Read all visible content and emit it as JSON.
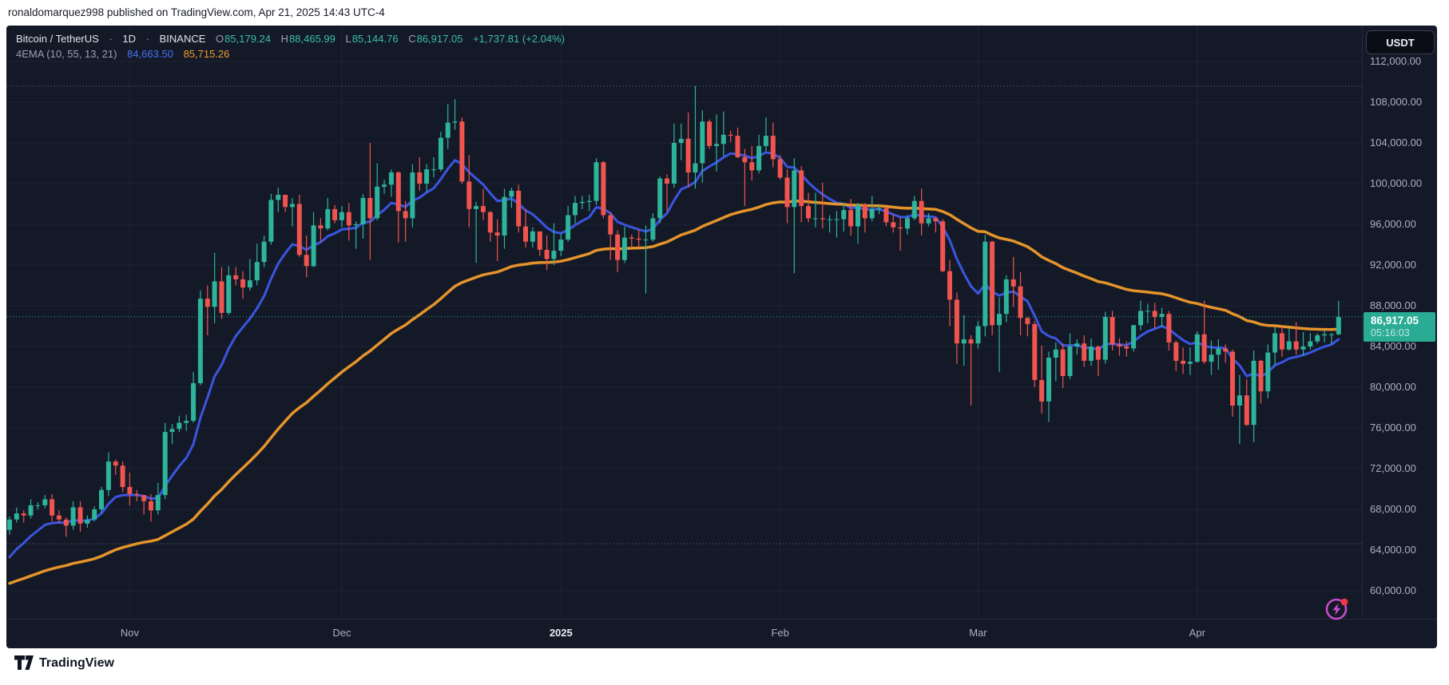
{
  "publish_bar": {
    "text": "ronaldomarquez998 published on TradingView.com, Apr 21, 2025 14:43 UTC-4"
  },
  "header": {
    "title": "Bitcoin / TetherUS",
    "dot": "·",
    "interval": "1D",
    "exchange": "BINANCE",
    "ohlc": [
      {
        "label": "O",
        "value": "85,179.24"
      },
      {
        "label": "H",
        "value": "88,465.99"
      },
      {
        "label": "L",
        "value": "85,144.76"
      },
      {
        "label": "C",
        "value": "86,917.05"
      }
    ],
    "change": "+1,737.81 (+2.04%)"
  },
  "indicator": {
    "name": "4EMA (10, 55, 13, 21)",
    "value_fast": "84,663.50",
    "value_slow": "85,715.26"
  },
  "price_label": {
    "price": "86,917.05",
    "countdown": "05:16:03"
  },
  "footer": {
    "logo_text": "TradingView"
  },
  "chart_data": {
    "type": "candlestick",
    "symbol": "BTCUSDT",
    "exchange": "BINANCE",
    "interval": "1D",
    "currency_button": "USDT",
    "units": "price values in thousands of USDT, one candle per day, Oct 15 2024 - Apr 21 2025",
    "last_bar": {
      "open": 85179.24,
      "high": 88465.99,
      "low": 85144.76,
      "close": 86917.05
    },
    "price_axis_ticks": [
      {
        "label": "112,000.00",
        "value": 112
      },
      {
        "label": "108,000.00",
        "value": 108
      },
      {
        "label": "104,000.00",
        "value": 104
      },
      {
        "label": "100,000.00",
        "value": 100
      },
      {
        "label": "96,000.00",
        "value": 96
      },
      {
        "label": "92,000.00",
        "value": 92
      },
      {
        "label": "88,000.00",
        "value": 88
      },
      {
        "label": "84,000.00",
        "value": 84
      },
      {
        "label": "80,000.00",
        "value": 80
      },
      {
        "label": "76,000.00",
        "value": 76
      },
      {
        "label": "72,000.00",
        "value": 72
      },
      {
        "label": "68,000.00",
        "value": 68
      },
      {
        "label": "64,000.00",
        "value": 64
      },
      {
        "label": "60,000.00",
        "value": 60
      }
    ],
    "time_axis_ticks": [
      {
        "label": "Nov",
        "index": 17,
        "bold": false
      },
      {
        "label": "Dec",
        "index": 47,
        "bold": false
      },
      {
        "label": "2025",
        "index": 78,
        "bold": true
      },
      {
        "label": "Feb",
        "index": 109,
        "bold": false
      },
      {
        "label": "Mar",
        "index": 137,
        "bold": false
      },
      {
        "label": "Apr",
        "index": 168,
        "bold": false
      }
    ],
    "price_line": {
      "value": 86.917,
      "label": "86,917.05",
      "countdown": "05:16:03"
    },
    "range_lines": {
      "high": 109.57,
      "low": 64.63
    },
    "emas": [
      {
        "name": "EMA fast (blue)",
        "period": 10,
        "seed": 62.5,
        "color": "#3a55e0",
        "width": 3
      },
      {
        "name": "EMA slow (orange)",
        "period": 55,
        "seed": 60.5,
        "color": "#e5942b",
        "width": 3.5
      }
    ],
    "colors": {
      "up": "#2db49a",
      "down": "#f0544f",
      "grid": "#1d2434",
      "axis_text": "#a9b0bf",
      "range_dotted": "#9aa3b5",
      "price_tag_bg": "#2aab93",
      "flash_icon": "#c54ccc",
      "alert_dot": "#f23645",
      "background": "#141927"
    },
    "candles_ohlc": [
      [
        66.0,
        67.3,
        65.5,
        67.0
      ],
      [
        67.0,
        68.2,
        66.7,
        67.6
      ],
      [
        67.6,
        67.9,
        66.7,
        67.4
      ],
      [
        67.4,
        69.0,
        67.1,
        68.4
      ],
      [
        68.4,
        68.7,
        68.0,
        68.4
      ],
      [
        68.4,
        69.4,
        68.1,
        69.0
      ],
      [
        69.0,
        69.5,
        66.8,
        67.4
      ],
      [
        67.4,
        67.9,
        66.6,
        67.0
      ],
      [
        67.0,
        67.2,
        65.3,
        66.4
      ],
      [
        66.4,
        68.8,
        66.0,
        68.2
      ],
      [
        68.2,
        68.8,
        65.8,
        66.6
      ],
      [
        66.6,
        67.4,
        66.2,
        67.0
      ],
      [
        67.0,
        68.3,
        66.8,
        68.0
      ],
      [
        68.0,
        70.2,
        67.6,
        69.9
      ],
      [
        69.9,
        73.6,
        69.3,
        72.7
      ],
      [
        72.7,
        72.9,
        71.4,
        72.3
      ],
      [
        72.3,
        72.7,
        69.7,
        70.2
      ],
      [
        70.2,
        71.6,
        68.4,
        69.5
      ],
      [
        69.5,
        69.9,
        68.8,
        69.4
      ],
      [
        69.4,
        69.4,
        67.5,
        68.8
      ],
      [
        68.8,
        69.5,
        66.8,
        67.9
      ],
      [
        67.9,
        70.6,
        67.5,
        69.4
      ],
      [
        69.4,
        76.5,
        69.0,
        75.6
      ],
      [
        75.6,
        76.4,
        74.4,
        75.9
      ],
      [
        75.9,
        77.2,
        75.6,
        76.5
      ],
      [
        76.5,
        77.3,
        75.7,
        76.7
      ],
      [
        76.7,
        81.5,
        76.5,
        80.4
      ],
      [
        80.4,
        89.5,
        80.2,
        88.7
      ],
      [
        88.7,
        90.0,
        85.1,
        87.9
      ],
      [
        87.9,
        93.2,
        86.3,
        90.4
      ],
      [
        90.4,
        91.8,
        86.7,
        87.3
      ],
      [
        87.3,
        91.9,
        87.1,
        91.0
      ],
      [
        91.0,
        91.8,
        90.0,
        90.6
      ],
      [
        90.6,
        91.4,
        88.7,
        89.8
      ],
      [
        89.8,
        92.6,
        89.5,
        90.5
      ],
      [
        90.5,
        94.1,
        90.0,
        92.3
      ],
      [
        92.3,
        94.9,
        91.8,
        94.3
      ],
      [
        94.3,
        99.0,
        94.0,
        98.4
      ],
      [
        98.4,
        99.6,
        97.2,
        98.9
      ],
      [
        98.9,
        98.9,
        97.2,
        97.7
      ],
      [
        97.7,
        98.6,
        95.8,
        98.0
      ],
      [
        98.0,
        98.9,
        92.8,
        93.0
      ],
      [
        93.0,
        94.9,
        90.8,
        91.9
      ],
      [
        91.9,
        97.2,
        91.8,
        95.9
      ],
      [
        95.9,
        96.6,
        94.3,
        95.6
      ],
      [
        95.6,
        98.6,
        95.4,
        97.5
      ],
      [
        97.5,
        97.9,
        96.1,
        96.4
      ],
      [
        96.4,
        97.8,
        95.7,
        97.2
      ],
      [
        97.2,
        98.1,
        94.4,
        95.9
      ],
      [
        95.9,
        96.3,
        93.6,
        96.0
      ],
      [
        96.0,
        99.0,
        94.6,
        98.6
      ],
      [
        98.6,
        104.0,
        92.5,
        96.6
      ],
      [
        96.6,
        102.0,
        96.4,
        99.7
      ],
      [
        99.7,
        100.4,
        99.0,
        99.9
      ],
      [
        99.9,
        101.4,
        98.7,
        101.1
      ],
      [
        101.1,
        101.2,
        94.2,
        97.3
      ],
      [
        97.3,
        98.3,
        94.3,
        96.6
      ],
      [
        96.6,
        101.9,
        95.7,
        101.1
      ],
      [
        101.1,
        102.6,
        99.3,
        100.0
      ],
      [
        100.0,
        101.9,
        99.2,
        101.4
      ],
      [
        101.4,
        102.6,
        100.6,
        101.4
      ],
      [
        101.4,
        105.1,
        101.2,
        104.5
      ],
      [
        104.5,
        107.8,
        103.4,
        106.0
      ],
      [
        106.0,
        108.3,
        105.3,
        106.1
      ],
      [
        106.1,
        106.5,
        100.0,
        100.2
      ],
      [
        100.2,
        102.8,
        95.7,
        97.5
      ],
      [
        97.5,
        98.2,
        92.2,
        97.8
      ],
      [
        97.8,
        99.5,
        96.4,
        97.2
      ],
      [
        97.2,
        97.3,
        94.3,
        95.2
      ],
      [
        95.2,
        96.5,
        92.4,
        94.9
      ],
      [
        94.9,
        99.5,
        93.6,
        98.7
      ],
      [
        98.7,
        99.6,
        97.6,
        99.3
      ],
      [
        99.3,
        99.9,
        95.2,
        95.8
      ],
      [
        95.8,
        97.5,
        93.7,
        94.3
      ],
      [
        94.3,
        95.7,
        93.7,
        95.3
      ],
      [
        95.3,
        95.3,
        92.9,
        93.5
      ],
      [
        93.5,
        94.9,
        91.5,
        92.6
      ],
      [
        92.6,
        96.1,
        92.0,
        93.4
      ],
      [
        93.4,
        95.1,
        92.9,
        94.5
      ],
      [
        94.5,
        97.8,
        94.3,
        96.9
      ],
      [
        96.9,
        98.8,
        96.1,
        98.1
      ],
      [
        98.1,
        98.8,
        97.5,
        98.2
      ],
      [
        98.2,
        98.9,
        97.3,
        98.3
      ],
      [
        98.3,
        102.5,
        97.9,
        102.1
      ],
      [
        102.1,
        102.2,
        96.6,
        96.9
      ],
      [
        96.9,
        97.2,
        92.5,
        95.0
      ],
      [
        95.0,
        95.4,
        91.3,
        92.5
      ],
      [
        92.5,
        95.8,
        92.2,
        94.7
      ],
      [
        94.7,
        95.0,
        93.7,
        94.6
      ],
      [
        94.6,
        95.5,
        93.7,
        94.5
      ],
      [
        94.5,
        95.9,
        89.2,
        94.5
      ],
      [
        94.5,
        97.1,
        94.3,
        96.6
      ],
      [
        96.6,
        100.7,
        96.1,
        100.5
      ],
      [
        100.5,
        100.9,
        97.3,
        100.0
      ],
      [
        100.0,
        105.9,
        99.6,
        104.0
      ],
      [
        104.0,
        105.9,
        102.3,
        104.4
      ],
      [
        104.4,
        107.0,
        99.6,
        101.1
      ],
      [
        101.1,
        109.6,
        99.5,
        102.0
      ],
      [
        102.0,
        107.2,
        100.1,
        106.1
      ],
      [
        106.1,
        106.3,
        103.4,
        103.7
      ],
      [
        103.7,
        106.8,
        101.2,
        103.9
      ],
      [
        103.9,
        107.1,
        102.7,
        104.8
      ],
      [
        104.8,
        105.2,
        104.1,
        104.7
      ],
      [
        104.7,
        105.5,
        102.5,
        102.6
      ],
      [
        102.6,
        103.4,
        97.8,
        102.1
      ],
      [
        102.1,
        103.7,
        100.3,
        101.3
      ],
      [
        101.3,
        104.8,
        101.0,
        103.7
      ],
      [
        103.7,
        106.5,
        103.2,
        104.7
      ],
      [
        104.7,
        106.0,
        101.6,
        102.4
      ],
      [
        102.4,
        102.8,
        100.4,
        100.6
      ],
      [
        100.6,
        101.4,
        96.1,
        97.7
      ],
      [
        97.7,
        102.5,
        91.2,
        101.3
      ],
      [
        101.3,
        101.7,
        96.2,
        97.8
      ],
      [
        97.8,
        99.1,
        96.2,
        96.6
      ],
      [
        96.6,
        99.1,
        95.7,
        96.6
      ],
      [
        96.6,
        100.1,
        95.6,
        96.5
      ],
      [
        96.5,
        96.9,
        95.2,
        96.5
      ],
      [
        96.5,
        97.3,
        94.7,
        96.5
      ],
      [
        96.5,
        98.1,
        95.3,
        97.4
      ],
      [
        97.4,
        98.5,
        94.9,
        95.8
      ],
      [
        95.8,
        98.1,
        94.1,
        97.9
      ],
      [
        97.9,
        98.1,
        95.2,
        96.6
      ],
      [
        96.6,
        98.8,
        96.3,
        97.5
      ],
      [
        97.5,
        97.9,
        97.0,
        97.6
      ],
      [
        97.6,
        97.7,
        95.8,
        96.2
      ],
      [
        96.2,
        97.0,
        95.2,
        95.7
      ],
      [
        95.7,
        96.7,
        93.4,
        95.6
      ],
      [
        95.6,
        96.9,
        95.0,
        96.6
      ],
      [
        96.6,
        98.8,
        96.4,
        98.3
      ],
      [
        98.3,
        99.5,
        94.9,
        96.1
      ],
      [
        96.1,
        97.1,
        95.8,
        96.6
      ],
      [
        96.6,
        96.7,
        95.2,
        96.3
      ],
      [
        96.3,
        96.5,
        91.3,
        91.4
      ],
      [
        91.4,
        92.5,
        86.0,
        88.6
      ],
      [
        88.6,
        89.3,
        82.3,
        84.3
      ],
      [
        84.3,
        87.1,
        82.1,
        84.7
      ],
      [
        84.7,
        85.1,
        78.2,
        84.3
      ],
      [
        84.3,
        86.5,
        83.8,
        86.0
      ],
      [
        86.0,
        95.0,
        85.0,
        94.3
      ],
      [
        94.3,
        94.4,
        85.1,
        86.1
      ],
      [
        86.1,
        88.8,
        81.5,
        87.2
      ],
      [
        87.2,
        91.0,
        86.4,
        90.6
      ],
      [
        90.6,
        92.8,
        87.9,
        89.9
      ],
      [
        89.9,
        91.3,
        85.1,
        86.8
      ],
      [
        86.8,
        86.9,
        85.0,
        86.2
      ],
      [
        86.2,
        86.5,
        80.0,
        80.7
      ],
      [
        80.7,
        84.1,
        77.4,
        78.6
      ],
      [
        78.6,
        83.5,
        76.6,
        82.9
      ],
      [
        82.9,
        84.4,
        80.6,
        83.7
      ],
      [
        83.7,
        84.3,
        79.9,
        81.1
      ],
      [
        81.1,
        85.3,
        80.8,
        84.0
      ],
      [
        84.0,
        84.7,
        83.2,
        84.3
      ],
      [
        84.3,
        85.1,
        82.0,
        82.6
      ],
      [
        82.6,
        84.8,
        82.1,
        84.0
      ],
      [
        84.0,
        84.1,
        81.1,
        82.7
      ],
      [
        82.7,
        87.4,
        82.3,
        86.9
      ],
      [
        86.9,
        87.5,
        83.6,
        84.2
      ],
      [
        84.2,
        84.8,
        83.1,
        84.0
      ],
      [
        84.0,
        84.5,
        83.0,
        83.8
      ],
      [
        83.8,
        86.1,
        83.5,
        86.1
      ],
      [
        86.1,
        88.5,
        85.6,
        87.5
      ],
      [
        87.5,
        88.2,
        86.3,
        87.5
      ],
      [
        87.5,
        88.3,
        85.8,
        86.9
      ],
      [
        86.9,
        87.8,
        85.9,
        87.2
      ],
      [
        87.2,
        87.5,
        83.6,
        84.4
      ],
      [
        84.4,
        84.6,
        81.6,
        82.6
      ],
      [
        82.6,
        83.9,
        81.3,
        82.3
      ],
      [
        82.3,
        83.9,
        81.2,
        82.5
      ],
      [
        82.5,
        85.5,
        82.4,
        85.2
      ],
      [
        85.2,
        88.5,
        82.3,
        82.5
      ],
      [
        82.5,
        84.6,
        81.2,
        83.2
      ],
      [
        83.2,
        84.7,
        81.7,
        83.8
      ],
      [
        83.8,
        84.2,
        82.4,
        83.5
      ],
      [
        83.5,
        83.7,
        77.1,
        78.2
      ],
      [
        78.2,
        81.2,
        74.4,
        79.2
      ],
      [
        79.2,
        80.8,
        76.2,
        76.3
      ],
      [
        76.3,
        83.6,
        74.6,
        82.6
      ],
      [
        82.6,
        82.7,
        78.4,
        79.6
      ],
      [
        79.6,
        84.2,
        78.9,
        83.4
      ],
      [
        83.4,
        85.9,
        82.1,
        85.3
      ],
      [
        85.3,
        86.0,
        83.0,
        83.7
      ],
      [
        83.7,
        85.8,
        83.6,
        84.5
      ],
      [
        84.5,
        86.4,
        83.2,
        83.7
      ],
      [
        83.7,
        85.4,
        83.1,
        84.0
      ],
      [
        84.0,
        85.3,
        83.7,
        84.5
      ],
      [
        84.5,
        85.3,
        84.3,
        85.1
      ],
      [
        85.1,
        85.6,
        84.4,
        85.2
      ],
      [
        85.2,
        85.3,
        84.2,
        85.2
      ],
      [
        85.2,
        88.5,
        85.1,
        86.9
      ]
    ]
  }
}
